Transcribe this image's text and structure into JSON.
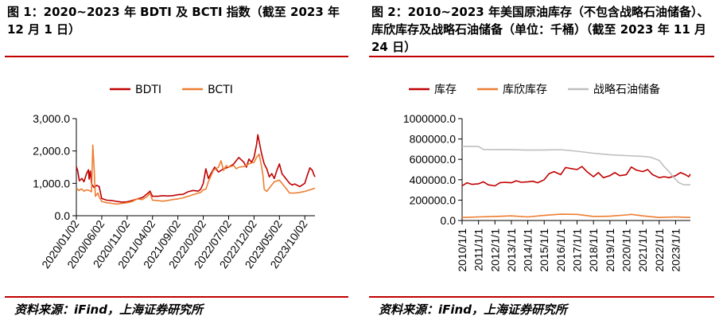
{
  "left": {
    "title": "图 1：2020~2023 年 BDTI 及 BCTI 指数（截至 2023 年 12 月 1 日）",
    "source": "资料来源：iFind，上海证券研究所",
    "colors": {
      "rule": "#c00000"
    }
  },
  "right": {
    "title": "图 2：2010~2023 年美国原油库存（不包含战略石油储备）、库欣库存及战略石油储备（单位：千桶）（截至 2023 年 11 月 24 日）",
    "source": "资料来源：iFind，上海证券研究所"
  },
  "chart_data": [
    {
      "type": "line",
      "ylim": [
        0,
        3000
      ],
      "yticks": [
        "0.0",
        "1,000.0",
        "2,000.0",
        "3,000.0"
      ],
      "xticks": [
        "2020/01/02",
        "2020/06/02",
        "2020/11/02",
        "2021/04/02",
        "2021/09/02",
        "2022/02/02",
        "2022/07/02",
        "2022/12/02",
        "2023/05/02",
        "2023/10/02"
      ],
      "legend_position": "top",
      "series": [
        {
          "name": "BDTI",
          "color": "#c00000",
          "points": [
            [
              0,
              1520
            ],
            [
              0.05,
              1400
            ],
            [
              0.12,
              1080
            ],
            [
              0.22,
              1150
            ],
            [
              0.3,
              1050
            ],
            [
              0.4,
              1300
            ],
            [
              0.48,
              1420
            ],
            [
              0.5,
              1130
            ],
            [
              0.55,
              1380
            ],
            [
              0.6,
              980
            ],
            [
              0.7,
              870
            ],
            [
              0.8,
              940
            ],
            [
              0.9,
              900
            ],
            [
              1.0,
              530
            ],
            [
              1.2,
              480
            ],
            [
              1.4,
              470
            ],
            [
              1.6,
              440
            ],
            [
              1.8,
              420
            ],
            [
              2.0,
              430
            ],
            [
              2.2,
              470
            ],
            [
              2.4,
              520
            ],
            [
              2.6,
              560
            ],
            [
              2.8,
              680
            ],
            [
              2.9,
              760
            ],
            [
              3.0,
              600
            ],
            [
              3.2,
              600
            ],
            [
              3.4,
              620
            ],
            [
              3.6,
              610
            ],
            [
              3.8,
              620
            ],
            [
              4.0,
              650
            ],
            [
              4.2,
              660
            ],
            [
              4.4,
              740
            ],
            [
              4.6,
              780
            ],
            [
              4.8,
              760
            ],
            [
              4.9,
              820
            ],
            [
              5.0,
              1000
            ],
            [
              5.1,
              1450
            ],
            [
              5.2,
              1150
            ],
            [
              5.3,
              1300
            ],
            [
              5.45,
              1500
            ],
            [
              5.6,
              1350
            ],
            [
              5.8,
              1450
            ],
            [
              6.0,
              1500
            ],
            [
              6.2,
              1600
            ],
            [
              6.4,
              1800
            ],
            [
              6.6,
              1650
            ],
            [
              6.7,
              1500
            ],
            [
              6.8,
              1750
            ],
            [
              6.9,
              1650
            ],
            [
              7.0,
              1800
            ],
            [
              7.1,
              2200
            ],
            [
              7.15,
              2500
            ],
            [
              7.2,
              2300
            ],
            [
              7.3,
              1900
            ],
            [
              7.4,
              1600
            ],
            [
              7.5,
              1450
            ],
            [
              7.6,
              1200
            ],
            [
              7.7,
              1300
            ],
            [
              7.8,
              1150
            ],
            [
              7.9,
              1400
            ],
            [
              8.0,
              1600
            ],
            [
              8.1,
              1300
            ],
            [
              8.2,
              1200
            ],
            [
              8.3,
              1100
            ],
            [
              8.4,
              1000
            ],
            [
              8.5,
              950
            ],
            [
              8.6,
              980
            ],
            [
              8.8,
              900
            ],
            [
              9.0,
              1000
            ],
            [
              9.1,
              1250
            ],
            [
              9.2,
              1480
            ],
            [
              9.3,
              1400
            ],
            [
              9.35,
              1280
            ],
            [
              9.4,
              1200
            ]
          ]
        },
        {
          "name": "BCTI",
          "color": "#ed7d31",
          "points": [
            [
              0,
              850
            ],
            [
              0.1,
              780
            ],
            [
              0.2,
              830
            ],
            [
              0.3,
              760
            ],
            [
              0.4,
              800
            ],
            [
              0.5,
              780
            ],
            [
              0.6,
              740
            ],
            [
              0.65,
              2180
            ],
            [
              0.7,
              1500
            ],
            [
              0.75,
              600
            ],
            [
              0.85,
              700
            ],
            [
              0.9,
              580
            ],
            [
              1.0,
              440
            ],
            [
              1.2,
              400
            ],
            [
              1.4,
              380
            ],
            [
              1.6,
              360
            ],
            [
              1.8,
              380
            ],
            [
              2.0,
              400
            ],
            [
              2.2,
              440
            ],
            [
              2.4,
              520
            ],
            [
              2.6,
              500
            ],
            [
              2.8,
              600
            ],
            [
              2.9,
              700
            ],
            [
              3.0,
              480
            ],
            [
              3.2,
              470
            ],
            [
              3.4,
              450
            ],
            [
              3.6,
              470
            ],
            [
              3.8,
              500
            ],
            [
              4.0,
              520
            ],
            [
              4.2,
              550
            ],
            [
              4.4,
              600
            ],
            [
              4.6,
              650
            ],
            [
              4.8,
              700
            ],
            [
              4.9,
              720
            ],
            [
              5.0,
              800
            ],
            [
              5.1,
              820
            ],
            [
              5.2,
              1050
            ],
            [
              5.4,
              1400
            ],
            [
              5.6,
              1500
            ],
            [
              5.7,
              1700
            ],
            [
              5.8,
              1400
            ],
            [
              5.9,
              1550
            ],
            [
              6.0,
              1500
            ],
            [
              6.2,
              1550
            ],
            [
              6.3,
              1450
            ],
            [
              6.4,
              1500
            ],
            [
              6.6,
              1520
            ],
            [
              6.8,
              1600
            ],
            [
              7.0,
              1650
            ],
            [
              7.1,
              1800
            ],
            [
              7.2,
              1900
            ],
            [
              7.3,
              1500
            ],
            [
              7.35,
              1250
            ],
            [
              7.4,
              820
            ],
            [
              7.5,
              750
            ],
            [
              7.6,
              850
            ],
            [
              7.8,
              1050
            ],
            [
              8.0,
              1100
            ],
            [
              8.2,
              900
            ],
            [
              8.4,
              700
            ],
            [
              8.6,
              700
            ],
            [
              8.8,
              720
            ],
            [
              9.0,
              750
            ],
            [
              9.2,
              800
            ],
            [
              9.4,
              850
            ]
          ]
        }
      ]
    },
    {
      "type": "line",
      "ylim": [
        0,
        1000000
      ],
      "yticks": [
        "0.0",
        "200000.0",
        "400000.0",
        "600000.0",
        "800000.0",
        "1000000.0"
      ],
      "xticks": [
        "2010/1/1",
        "2011/1/1",
        "2012/1/1",
        "2013/1/1",
        "2014/1/1",
        "2015/1/1",
        "2016/1/1",
        "2017/1/1",
        "2018/1/1",
        "2019/1/1",
        "2020/1/1",
        "2021/1/1",
        "2022/1/1",
        "2023/1/1"
      ],
      "legend_position": "top",
      "series": [
        {
          "name": "库存",
          "color": "#c00000",
          "points": [
            [
              0,
              340000
            ],
            [
              0.3,
              370000
            ],
            [
              0.6,
              355000
            ],
            [
              1.0,
              360000
            ],
            [
              1.3,
              380000
            ],
            [
              1.6,
              350000
            ],
            [
              2.0,
              340000
            ],
            [
              2.3,
              370000
            ],
            [
              2.6,
              375000
            ],
            [
              3.0,
              370000
            ],
            [
              3.3,
              390000
            ],
            [
              3.6,
              375000
            ],
            [
              4.0,
              380000
            ],
            [
              4.3,
              385000
            ],
            [
              4.6,
              370000
            ],
            [
              5.0,
              400000
            ],
            [
              5.3,
              460000
            ],
            [
              5.6,
              480000
            ],
            [
              6.0,
              450000
            ],
            [
              6.3,
              520000
            ],
            [
              6.6,
              510000
            ],
            [
              7.0,
              500000
            ],
            [
              7.3,
              530000
            ],
            [
              7.6,
              480000
            ],
            [
              8.0,
              430000
            ],
            [
              8.3,
              470000
            ],
            [
              8.6,
              420000
            ],
            [
              9.0,
              440000
            ],
            [
              9.3,
              470000
            ],
            [
              9.6,
              440000
            ],
            [
              10.0,
              450000
            ],
            [
              10.3,
              525000
            ],
            [
              10.6,
              495000
            ],
            [
              11.0,
              480000
            ],
            [
              11.3,
              500000
            ],
            [
              11.6,
              450000
            ],
            [
              12.0,
              420000
            ],
            [
              12.3,
              430000
            ],
            [
              12.6,
              420000
            ],
            [
              13.0,
              440000
            ],
            [
              13.3,
              470000
            ],
            [
              13.6,
              450000
            ],
            [
              13.8,
              430000
            ],
            [
              13.9,
              455000
            ]
          ]
        },
        {
          "name": "库欣库存",
          "color": "#ed7d31",
          "points": [
            [
              0,
              30000
            ],
            [
              1.0,
              35000
            ],
            [
              2.0,
              40000
            ],
            [
              3.0,
              45000
            ],
            [
              4.0,
              35000
            ],
            [
              5.0,
              50000
            ],
            [
              6.0,
              62000
            ],
            [
              7.0,
              60000
            ],
            [
              8.0,
              40000
            ],
            [
              9.0,
              42000
            ],
            [
              10.0,
              55000
            ],
            [
              10.3,
              60000
            ],
            [
              11.0,
              45000
            ],
            [
              12.0,
              30000
            ],
            [
              13.0,
              35000
            ],
            [
              13.5,
              32000
            ],
            [
              13.9,
              30000
            ]
          ]
        },
        {
          "name": "战略石油储备",
          "color": "#bfbfbf",
          "points": [
            [
              0,
              727000
            ],
            [
              1.0,
              727000
            ],
            [
              1.3,
              697000
            ],
            [
              2.0,
              696000
            ],
            [
              3.0,
              696000
            ],
            [
              4.0,
              691000
            ],
            [
              5.0,
              692000
            ],
            [
              6.0,
              695000
            ],
            [
              7.0,
              680000
            ],
            [
              8.0,
              660000
            ],
            [
              9.0,
              645000
            ],
            [
              10.0,
              637000
            ],
            [
              11.0,
              630000
            ],
            [
              11.5,
              620000
            ],
            [
              12.0,
              590000
            ],
            [
              12.3,
              530000
            ],
            [
              12.6,
              480000
            ],
            [
              12.9,
              420000
            ],
            [
              13.2,
              372000
            ],
            [
              13.5,
              350000
            ],
            [
              13.9,
              351000
            ]
          ]
        }
      ]
    }
  ]
}
